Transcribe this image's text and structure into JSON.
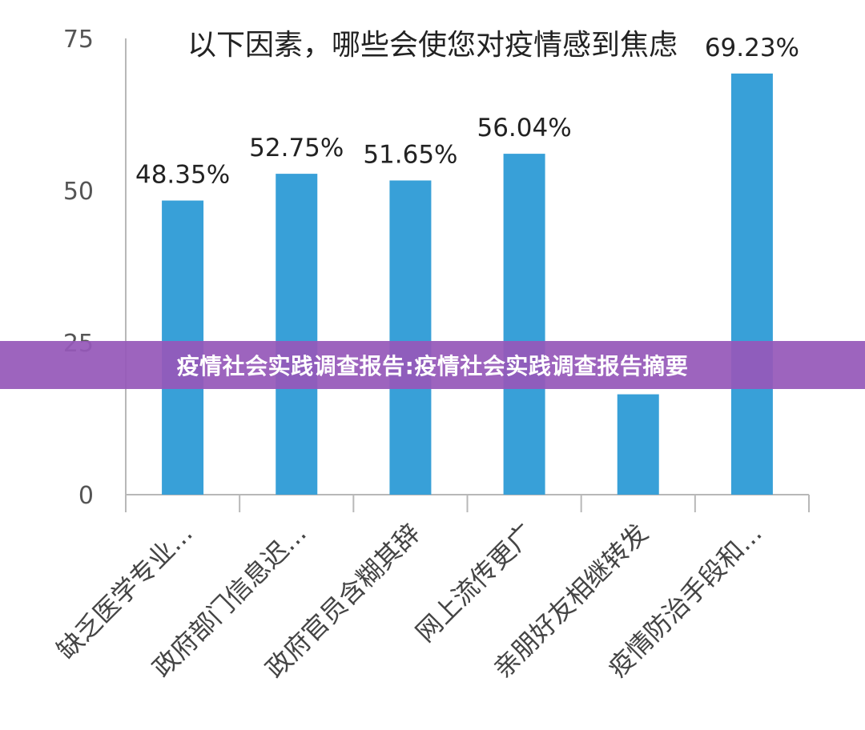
{
  "chart_data": {
    "type": "bar",
    "title": "以下因素，哪些会使您对疫情感到焦虑",
    "categories": [
      "缺乏医学专业...",
      "政府部门信息迟...",
      "政府官员含糊其辞",
      "网上流传更广",
      "亲朋好友相继转发",
      "疫情防治手段和..."
    ],
    "values": [
      48.35,
      52.75,
      51.65,
      56.04,
      16.5,
      69.23
    ],
    "data_labels": [
      "48.35%",
      "52.75%",
      "51.65%",
      "56.04%",
      "",
      "69.23%"
    ],
    "yticks": [
      "0",
      "25",
      "50",
      "75"
    ],
    "ytick_values": [
      0,
      25,
      50,
      75
    ],
    "ylim": [
      0,
      75
    ],
    "bar_color": "#38a0d8",
    "grid": false
  },
  "banner": {
    "text": "疫情社会实践调查报告:疫情社会实践调查报告摘要",
    "color": "#9658b9"
  }
}
